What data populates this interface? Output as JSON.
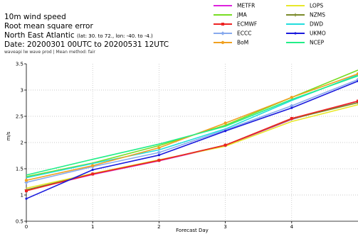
{
  "header": {
    "line1": "10m wind speed",
    "line2": "Root mean square error",
    "line3_main": "North East Atlantic",
    "line3_small": "(lat: 30. to 72., lon: -40. to -4.)",
    "line4": "Date: 20200301 00UTC to 20200531 12UTC",
    "line5": "waveapi lw wave prod | Mean method: fair"
  },
  "chart_data": {
    "type": "line",
    "title": "10m wind speed",
    "xlabel": "Forecast Day",
    "ylabel": "m/s",
    "xlim": [
      0,
      5
    ],
    "ylim": [
      0.5,
      3.5
    ],
    "x": [
      0,
      1,
      2,
      3,
      4,
      5
    ],
    "x_tick_labels": [
      "0",
      "1",
      "2",
      "3",
      "4"
    ],
    "y_ticks": [
      0.5,
      1,
      1.5,
      2,
      2.5,
      3,
      3.5
    ],
    "y_tick_labels": [
      "0.5",
      "1",
      "1.5",
      "2",
      "2.5",
      "3",
      "3.5"
    ],
    "grid": true,
    "legend_position": "top-right",
    "series": [
      {
        "name": "METFR",
        "color": "#dd22dd",
        "marker": "none",
        "values": [
          1.09,
          1.39,
          1.65,
          1.94,
          2.44,
          2.79
        ]
      },
      {
        "name": "LOPS",
        "color": "#e8e82a",
        "marker": "none",
        "values": [
          1.13,
          1.41,
          1.67,
          1.93,
          2.4,
          2.72
        ]
      },
      {
        "name": "JMA",
        "color": "#77dd22",
        "marker": "none",
        "values": [
          1.35,
          1.61,
          1.94,
          2.33,
          2.86,
          3.38
        ]
      },
      {
        "name": "NZMS",
        "color": "#7a8a2a",
        "marker": "plus",
        "values": [
          1.1,
          1.4,
          1.66,
          1.95,
          2.45,
          2.76
        ]
      },
      {
        "name": "ECMWF",
        "color": "#ee2222",
        "marker": "square",
        "values": [
          1.08,
          1.4,
          1.66,
          1.95,
          2.46,
          2.79
        ]
      },
      {
        "name": "DWD",
        "color": "#22dddd",
        "marker": "none",
        "values": [
          1.33,
          1.6,
          1.86,
          2.26,
          2.8,
          3.29
        ]
      },
      {
        "name": "ECCC",
        "color": "#88aaee",
        "marker": "diamond",
        "values": [
          1.24,
          1.54,
          1.81,
          2.24,
          2.7,
          3.2
        ]
      },
      {
        "name": "UKMO",
        "color": "#1a1add",
        "marker": "dot",
        "values": [
          0.93,
          1.48,
          1.76,
          2.22,
          2.66,
          3.17
        ]
      },
      {
        "name": "BoM",
        "color": "#f0a020",
        "marker": "circle",
        "values": [
          1.28,
          1.56,
          1.9,
          2.37,
          2.86,
          3.31
        ]
      },
      {
        "name": "NCEP",
        "color": "#22ee88",
        "marker": "none",
        "values": [
          1.38,
          1.68,
          1.97,
          2.31,
          2.82,
          3.27
        ]
      }
    ]
  }
}
